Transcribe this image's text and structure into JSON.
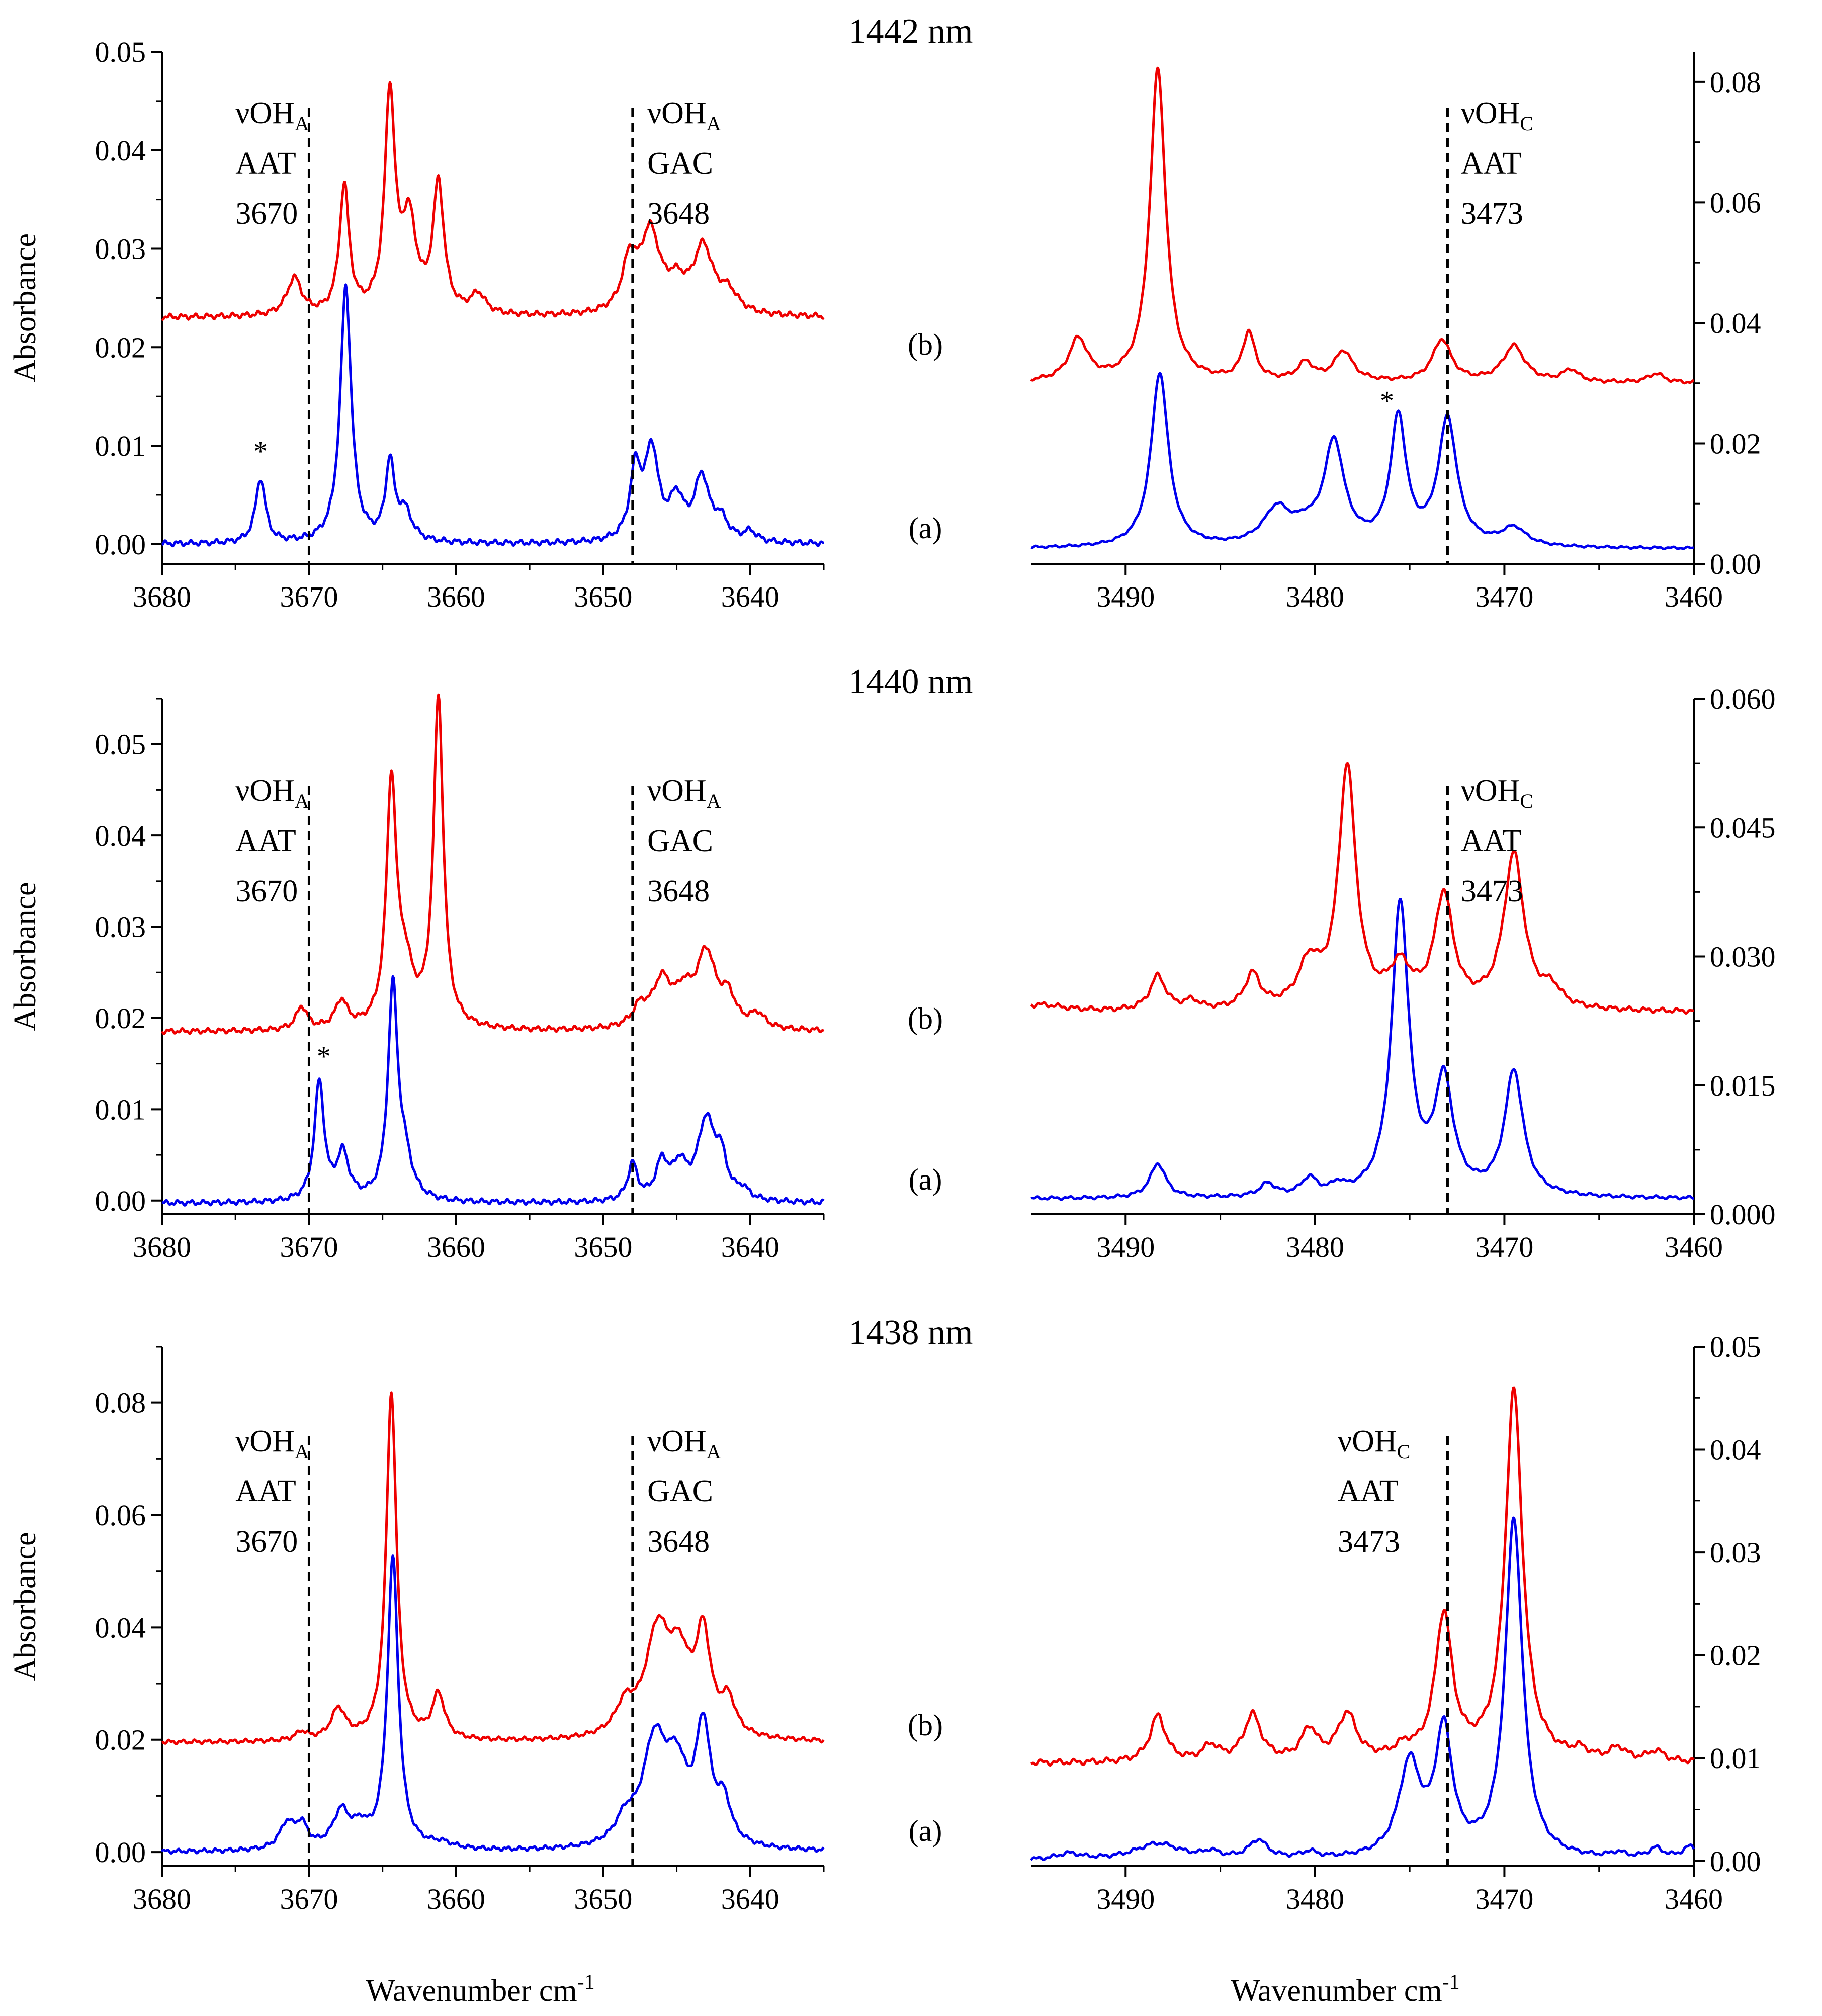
{
  "figure": {
    "xlabel": "Wavenumber cm",
    "xlabel_sup": "-1",
    "ylabel": "Absorbance"
  },
  "chart_data": [
    {
      "type": "line",
      "panel": "1442-left",
      "title": "1442 nm",
      "ylabel": "Absorbance",
      "xlim": [
        3680,
        3635
      ],
      "ylim": [
        -0.002,
        0.05
      ],
      "xticks": [
        "3680",
        "3670",
        "3660",
        "3650",
        "3640"
      ],
      "yticks": [
        "0.00",
        "0.01",
        "0.02",
        "0.03",
        "0.04",
        "0.05"
      ],
      "vlines": [
        3670,
        3648
      ],
      "labels": [
        {
          "main": "νOH",
          "sub": "A",
          "l2": "AAT",
          "l3": "3670",
          "x": 3675
        },
        {
          "main": "νOH",
          "sub": "A",
          "l2": "GAC",
          "l3": "3648",
          "x": 3647
        }
      ],
      "asterisks": [
        {
          "x": 3673.3,
          "y": 0.0085
        }
      ],
      "series": [
        {
          "name": "(a)",
          "color": "#0000ee",
          "baseline": 0.0,
          "noise": 0.0003,
          "peaks": [
            [
              3673.3,
              0.0065,
              0.4
            ],
            [
              3667.5,
              0.026,
              0.45
            ],
            [
              3664.5,
              0.0078,
              0.35
            ],
            [
              3663.5,
              0.003,
              0.6
            ],
            [
              3647.8,
              0.007,
              0.45
            ],
            [
              3646.7,
              0.009,
              0.55
            ],
            [
              3645,
              0.004,
              0.6
            ],
            [
              3643.3,
              0.0063,
              0.6
            ],
            [
              3642,
              0.002,
              0.6
            ],
            [
              3640,
              0.001,
              0.5
            ]
          ]
        },
        {
          "name": "(b)",
          "color": "#ee0000",
          "baseline": 0.023,
          "noise": 0.0003,
          "peaks": [
            [
              3671,
              0.0038,
              0.6
            ],
            [
              3667.6,
              0.013,
              0.4
            ],
            [
              3664.5,
              0.022,
              0.42
            ],
            [
              3663.2,
              0.009,
              0.6
            ],
            [
              3661.2,
              0.013,
              0.45
            ],
            [
              3658.5,
              0.002,
              0.6
            ],
            [
              3648.2,
              0.005,
              0.6
            ],
            [
              3646.8,
              0.008,
              0.8
            ],
            [
              3645,
              0.0025,
              0.8
            ],
            [
              3643.2,
              0.0065,
              0.8
            ],
            [
              3641.5,
              0.002,
              0.8
            ]
          ]
        }
      ]
    },
    {
      "type": "line",
      "panel": "1442-right",
      "xlim": [
        3495,
        3460
      ],
      "ylim": [
        0,
        0.085
      ],
      "xticks": [
        "3490",
        "3480",
        "3470",
        "3460"
      ],
      "yticks": [
        "0.00",
        "0.02",
        "0.04",
        "0.06",
        "0.08"
      ],
      "vlines": [
        3473
      ],
      "labels": [
        {
          "main": "νOH",
          "sub": "C",
          "l2": "AAT",
          "l3": "3473",
          "x": 3472.3
        }
      ],
      "asterisks": [
        {
          "x": 3476.2,
          "y": 0.0255
        }
      ],
      "series": [
        {
          "name": "(a)",
          "color": "#0000ee",
          "baseline": 0.0025,
          "noise": 0.0002,
          "peaks": [
            [
              3488.2,
              0.029,
              0.55
            ],
            [
              3482,
              0.006,
              0.9
            ],
            [
              3480.5,
              0.002,
              0.7
            ],
            [
              3479,
              0.017,
              0.65
            ],
            [
              3475.6,
              0.021,
              0.5
            ],
            [
              3473,
              0.021,
              0.6
            ],
            [
              3469.5,
              0.003,
              0.8
            ]
          ]
        },
        {
          "name": "(b)",
          "color": "#ee0000",
          "baseline": 0.03,
          "noise": 0.0003,
          "peaks": [
            [
              3492.5,
              0.007,
              0.6
            ],
            [
              3488.3,
              0.052,
              0.5
            ],
            [
              3483.5,
              0.008,
              0.4
            ],
            [
              3480.5,
              0.003,
              0.5
            ],
            [
              3478.5,
              0.005,
              0.6
            ],
            [
              3473.3,
              0.007,
              0.6
            ],
            [
              3469.5,
              0.006,
              0.7
            ],
            [
              3466.5,
              0.002,
              0.5
            ],
            [
              3462,
              0.0015,
              0.5
            ]
          ]
        }
      ]
    },
    {
      "type": "line",
      "panel": "1440-left",
      "title": "1440 nm",
      "ylabel": "Absorbance",
      "xlim": [
        3680,
        3635
      ],
      "ylim": [
        -0.0015,
        0.055
      ],
      "xticks": [
        "3680",
        "3670",
        "3660",
        "3650",
        "3640"
      ],
      "yticks": [
        "0.00",
        "0.01",
        "0.02",
        "0.03",
        "0.04",
        "0.05"
      ],
      "vlines": [
        3670,
        3648
      ],
      "labels": [
        {
          "main": "νOH",
          "sub": "A",
          "l2": "AAT",
          "l3": "3670",
          "x": 3675
        },
        {
          "main": "νOH",
          "sub": "A",
          "l2": "GAC",
          "l3": "3648",
          "x": 3647
        }
      ],
      "asterisks": [
        {
          "x": 3669,
          "y": 0.0148
        }
      ],
      "series": [
        {
          "name": "(a)",
          "color": "#0000ee",
          "baseline": -0.0003,
          "noise": 0.0003,
          "peaks": [
            [
              3669.3,
              0.013,
              0.4
            ],
            [
              3667.7,
              0.005,
              0.5
            ],
            [
              3664.3,
              0.023,
              0.4
            ],
            [
              3663.5,
              0.004,
              0.6
            ],
            [
              3648,
              0.004,
              0.4
            ],
            [
              3646,
              0.004,
              0.5
            ],
            [
              3644.8,
              0.0035,
              0.6
            ],
            [
              3643,
              0.0085,
              0.7
            ],
            [
              3642,
              0.004,
              0.5
            ],
            [
              3640.5,
              0.001,
              0.5
            ]
          ]
        },
        {
          "name": "(b)",
          "color": "#ee0000",
          "baseline": 0.0185,
          "noise": 0.0003,
          "peaks": [
            [
              3670.5,
              0.0025,
              0.45
            ],
            [
              3667.8,
              0.003,
              0.5
            ],
            [
              3664.4,
              0.026,
              0.4
            ],
            [
              3663.5,
              0.006,
              0.7
            ],
            [
              3661.2,
              0.036,
              0.4
            ],
            [
              3647.5,
              0.002,
              0.6
            ],
            [
              3646,
              0.005,
              0.8
            ],
            [
              3644.5,
              0.003,
              0.7
            ],
            [
              3643,
              0.008,
              0.8
            ],
            [
              3641.5,
              0.003,
              0.6
            ],
            [
              3639.5,
              0.0015,
              0.6
            ]
          ]
        }
      ]
    },
    {
      "type": "line",
      "panel": "1440-right",
      "xlim": [
        3495,
        3460
      ],
      "ylim": [
        0,
        0.06
      ],
      "xticks": [
        "3490",
        "3480",
        "3470",
        "3460"
      ],
      "yticks": [
        "0.000",
        "0.015",
        "0.030",
        "0.045",
        "0.060"
      ],
      "vlines": [
        3473
      ],
      "labels": [
        {
          "main": "νOH",
          "sub": "C",
          "l2": "AAT",
          "l3": "3473",
          "x": 3472.3
        }
      ],
      "asterisks": [],
      "series": [
        {
          "name": "(a)",
          "color": "#0000ee",
          "baseline": 0.0018,
          "noise": 0.0002,
          "peaks": [
            [
              3488.3,
              0.004,
              0.5
            ],
            [
              3482.5,
              0.0015,
              0.5
            ],
            [
              3480.3,
              0.002,
              0.5
            ],
            [
              3478.8,
              0.001,
              0.4
            ],
            [
              3475.5,
              0.034,
              0.55
            ],
            [
              3473.2,
              0.013,
              0.6
            ],
            [
              3469.5,
              0.0145,
              0.6
            ]
          ]
        },
        {
          "name": "(b)",
          "color": "#ee0000",
          "baseline": 0.0235,
          "noise": 0.0003,
          "peaks": [
            [
              3494.5,
              0.0008,
              1.5
            ],
            [
              3488.3,
              0.004,
              0.5
            ],
            [
              3486.5,
              0.001,
              0.5
            ],
            [
              3483.3,
              0.004,
              0.5
            ],
            [
              3480.3,
              0.005,
              0.7
            ],
            [
              3478.3,
              0.028,
              0.55
            ],
            [
              3475.5,
              0.0045,
              0.7
            ],
            [
              3473.2,
              0.013,
              0.6
            ],
            [
              3469.5,
              0.018,
              0.65
            ],
            [
              3467.5,
              0.002,
              0.6
            ]
          ]
        }
      ]
    },
    {
      "type": "line",
      "panel": "1438-left",
      "title": "1438 nm",
      "ylabel": "Absorbance",
      "xlim": [
        3680,
        3635
      ],
      "ylim": [
        -0.0025,
        0.09
      ],
      "xticks": [
        "3680",
        "3670",
        "3660",
        "3650",
        "3640"
      ],
      "yticks": [
        "0.00",
        "0.02",
        "0.04",
        "0.06",
        "0.08"
      ],
      "vlines": [
        3670,
        3648
      ],
      "labels": [
        {
          "main": "νOH",
          "sub": "A",
          "l2": "AAT",
          "l3": "3670",
          "x": 3675
        },
        {
          "main": "νOH",
          "sub": "A",
          "l2": "GAC",
          "l3": "3648",
          "x": 3647
        }
      ],
      "asterisks": [],
      "series": [
        {
          "name": "(a)",
          "color": "#0000ee",
          "baseline": 0.0,
          "noise": 0.0004,
          "peaks": [
            [
              3671.5,
              0.0045,
              0.6
            ],
            [
              3670.5,
              0.004,
              0.5
            ],
            [
              3667.8,
              0.0065,
              0.7
            ],
            [
              3666.5,
              0.003,
              0.6
            ],
            [
              3664.3,
              0.052,
              0.45
            ],
            [
              3661,
              0.001,
              1.0
            ],
            [
              3648.5,
              0.004,
              0.8
            ],
            [
              3646.5,
              0.018,
              1.0
            ],
            [
              3645,
              0.012,
              0.9
            ],
            [
              3643.2,
              0.02,
              0.6
            ],
            [
              3641.8,
              0.007,
              0.6
            ]
          ]
        },
        {
          "name": "(b)",
          "color": "#ee0000",
          "baseline": 0.0195,
          "noise": 0.0004,
          "peaks": [
            [
              3670.5,
              0.0015,
              0.5
            ],
            [
              3668,
              0.0055,
              0.6
            ],
            [
              3664.4,
              0.062,
              0.42
            ],
            [
              3661.2,
              0.008,
              0.5
            ],
            [
              3648.5,
              0.005,
              0.8
            ],
            [
              3646.3,
              0.018,
              1.0
            ],
            [
              3644.8,
              0.012,
              0.9
            ],
            [
              3643.2,
              0.017,
              0.6
            ],
            [
              3641.5,
              0.006,
              0.6
            ]
          ]
        }
      ]
    },
    {
      "type": "line",
      "panel": "1438-right",
      "xlim": [
        3495,
        3460
      ],
      "ylim": [
        -0.0005,
        0.05
      ],
      "xticks": [
        "3490",
        "3480",
        "3470",
        "3460"
      ],
      "yticks": [
        "0.00",
        "0.01",
        "0.02",
        "0.03",
        "0.04",
        "0.05"
      ],
      "vlines": [
        3473
      ],
      "labels": [
        {
          "main": "νOH",
          "sub": "C",
          "l2": "AAT",
          "l3": "3473",
          "x": 3478.8
        }
      ],
      "asterisks": [],
      "series": [
        {
          "name": "(a)",
          "color": "#0000ee",
          "baseline": 0.0,
          "noise": 0.0002,
          "peaks": [
            [
              3493,
              0.0006,
              0.8
            ],
            [
              3488.3,
              0.0016,
              1.5
            ],
            [
              3485.5,
              0.0006,
              0.5
            ],
            [
              3483,
              0.0018,
              0.6
            ],
            [
              3480.3,
              0.0006,
              0.5
            ],
            [
              3475,
              0.009,
              0.7
            ],
            [
              3473.2,
              0.012,
              0.55
            ],
            [
              3469.5,
              0.033,
              0.55
            ],
            [
              3464,
              0.0005,
              0.5
            ],
            [
              3462,
              0.001,
              0.5
            ],
            [
              3460.2,
              0.0012,
              0.5
            ]
          ]
        },
        {
          "name": "(b)",
          "color": "#ee0000",
          "baseline": 0.0095,
          "noise": 0.0003,
          "peaks": [
            [
              3488.3,
              0.0045,
              0.5
            ],
            [
              3485.5,
              0.0015,
              0.5
            ],
            [
              3483.3,
              0.0045,
              0.55
            ],
            [
              3480.3,
              0.003,
              0.5
            ],
            [
              3478.3,
              0.0045,
              0.6
            ],
            [
              3475.3,
              0.001,
              0.6
            ],
            [
              3473.2,
              0.014,
              0.55
            ],
            [
              3469.5,
              0.036,
              0.55
            ],
            [
              3466,
              0.0008,
              0.5
            ],
            [
              3464,
              0.0012,
              0.5
            ],
            [
              3462,
              0.001,
              0.5
            ]
          ]
        }
      ]
    }
  ]
}
